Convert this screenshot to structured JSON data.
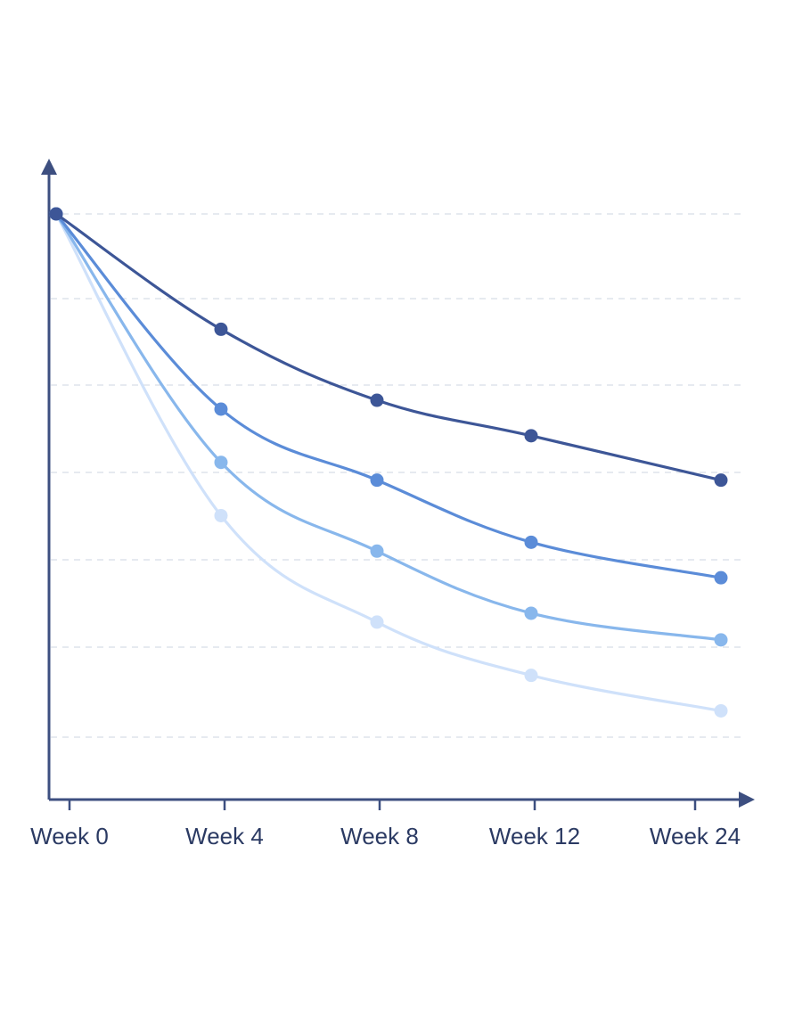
{
  "chart_data": {
    "type": "line",
    "title": "",
    "xlabel": "",
    "ylabel": "",
    "categories": [
      "Week 0",
      "Week 4",
      "Week 8",
      "Week 12",
      "Week 24"
    ],
    "ylim": [
      0,
      7
    ],
    "grid": true,
    "series": [
      {
        "color": "#3d5697",
        "values": [
          6.6,
          5.3,
          4.5,
          4.1,
          3.6
        ]
      },
      {
        "color": "#5b8cd8",
        "values": [
          6.6,
          4.4,
          3.6,
          2.9,
          2.5
        ]
      },
      {
        "color": "#88b7ec",
        "values": [
          6.6,
          3.8,
          2.8,
          2.1,
          1.8
        ]
      },
      {
        "color": "#cfe1fa",
        "values": [
          6.6,
          3.2,
          2.0,
          1.4,
          1.0
        ]
      }
    ],
    "colors": {
      "axis": "#3d4f80",
      "grid": "#d8dde6",
      "tick_text": "#2b3a63"
    }
  }
}
